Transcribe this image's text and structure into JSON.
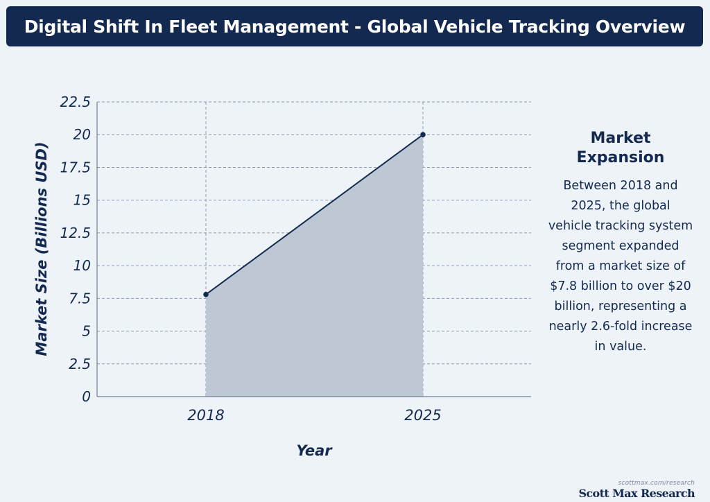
{
  "title": "Digital Shift In Fleet Management - Global Vehicle Tracking Overview",
  "side_panel": {
    "heading_line1": "Market",
    "heading_line2": "Expansion",
    "body": "Between 2018 and 2025, the global vehicle tracking system segment expanded from a market size of $7.8 billion to over $20 billion, representing a nearly 2.6-fold increase in value."
  },
  "footer": {
    "url": "scottmax.com/research",
    "brand": "Scott Max Research"
  },
  "colors": {
    "navy": "#14294f",
    "area_fill": "#bec8d5",
    "grid": "#8c9ab0",
    "background": "#eef3f8"
  },
  "chart_data": {
    "type": "area",
    "title": "",
    "xlabel": "Year",
    "ylabel": "Market Size (Billions USD)",
    "x": [
      "2018",
      "2025"
    ],
    "values": [
      7.8,
      20
    ],
    "ylim": [
      0,
      22.5
    ],
    "yticks": [
      "0",
      "2.5",
      "5",
      "7.5",
      "10",
      "12.5",
      "15",
      "17.5",
      "20",
      "22.5"
    ],
    "grid": true
  }
}
